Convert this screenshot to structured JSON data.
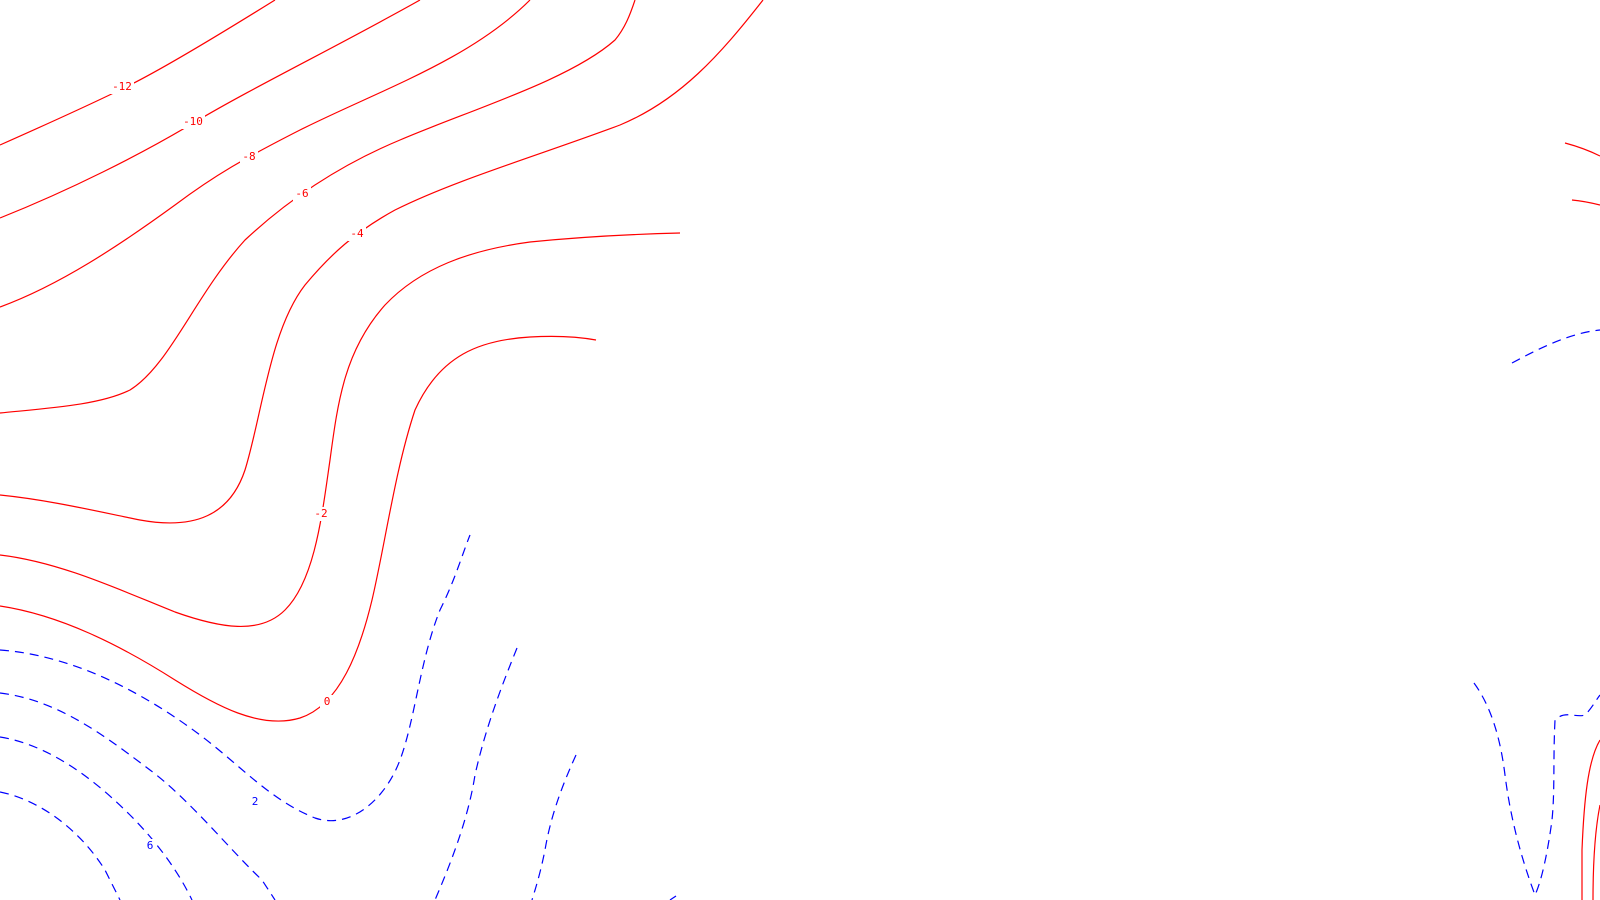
{
  "colors": {
    "background": "#ffffff",
    "negative_contour": "#ff0000",
    "positive_contour": "#0000ff"
  },
  "contour_labels": {
    "m12": "-12",
    "m10": "-10",
    "m8": "-8",
    "m6": "-6",
    "m4": "-4",
    "m2": "-2",
    "z0": "0",
    "p2": "2",
    "p6": "6"
  }
}
